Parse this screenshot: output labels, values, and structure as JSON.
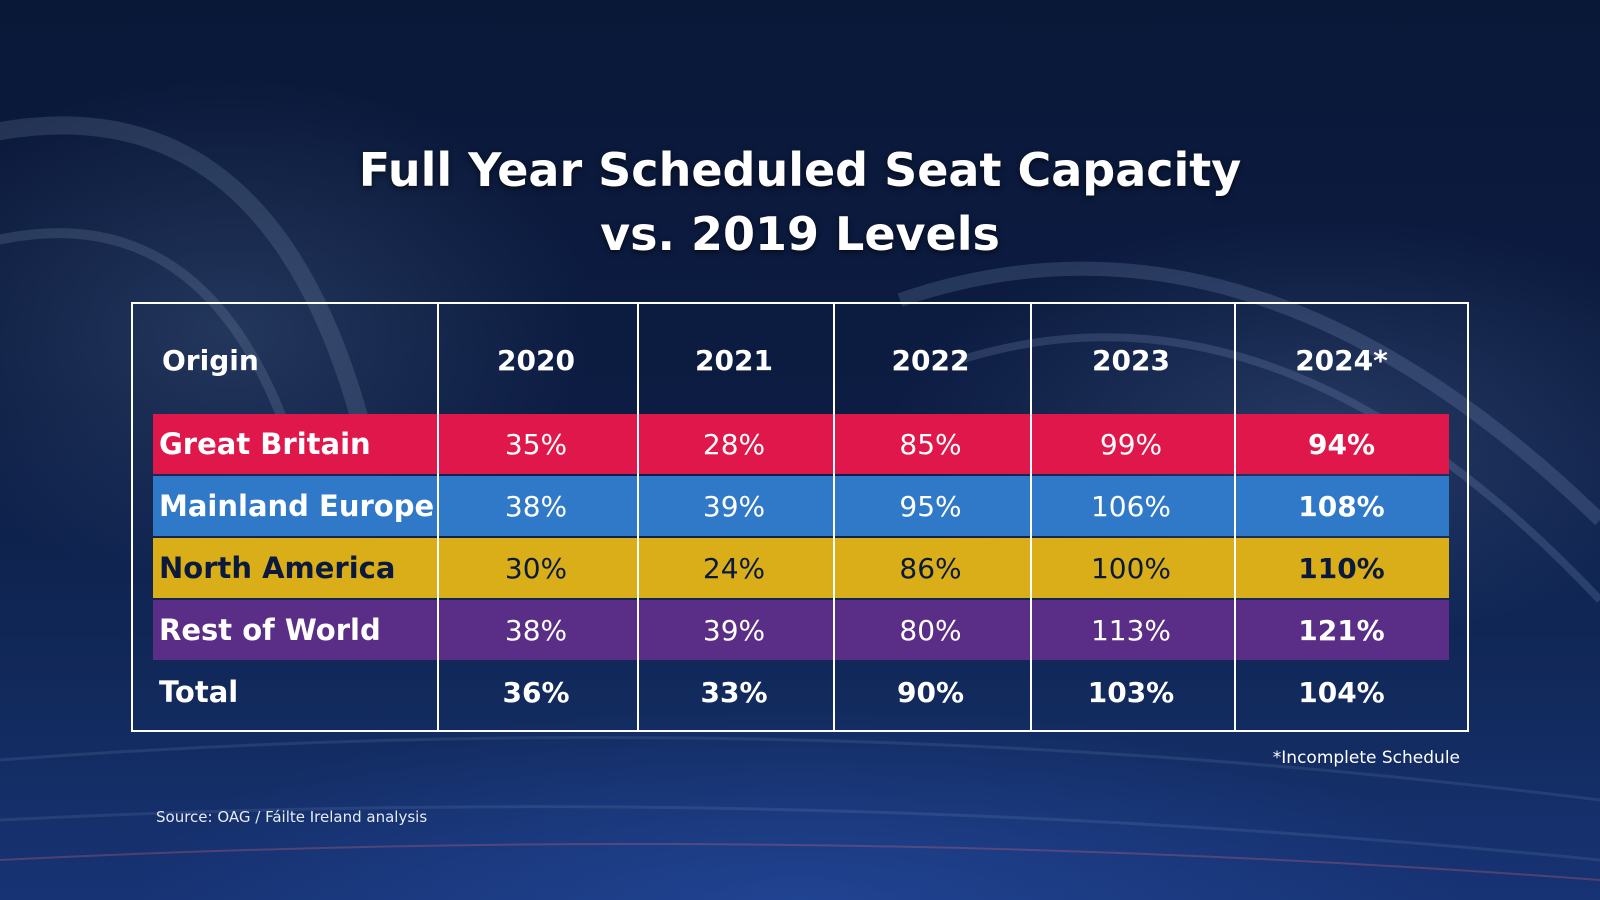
{
  "slide": {
    "title_line1": "Full Year Scheduled Seat Capacity",
    "title_line2": "vs. 2019 Levels",
    "footnote": "*Incomplete Schedule",
    "source": "Source: OAG / Fáilte Ireland analysis"
  },
  "colors": {
    "great_britain": "#e0174a",
    "mainland_europe": "#3079c9",
    "north_america": "#d9ae18",
    "rest_of_world": "#5a2e86",
    "text_light": "#ffffff",
    "text_dark": "#0b1a3c"
  },
  "chart_data": {
    "type": "table",
    "title": "Full Year Scheduled Seat Capacity vs. 2019 Levels",
    "columns": [
      "Origin",
      "2020",
      "2021",
      "2022",
      "2023",
      "2024*"
    ],
    "rows": [
      {
        "label": "Great Britain",
        "values": [
          "35%",
          "28%",
          "85%",
          "99%",
          "94%"
        ],
        "color": "#e0174a",
        "text": "light"
      },
      {
        "label": "Mainland Europe",
        "values": [
          "38%",
          "39%",
          "95%",
          "106%",
          "108%"
        ],
        "color": "#3079c9",
        "text": "light"
      },
      {
        "label": "North America",
        "values": [
          "30%",
          "24%",
          "86%",
          "100%",
          "110%"
        ],
        "color": "#d9ae18",
        "text": "dark"
      },
      {
        "label": "Rest of World",
        "values": [
          "38%",
          "39%",
          "80%",
          "113%",
          "121%"
        ],
        "color": "#5a2e86",
        "text": "light"
      },
      {
        "label": "Total",
        "values": [
          "36%",
          "33%",
          "90%",
          "103%",
          "104%"
        ],
        "color": "",
        "text": "light"
      }
    ]
  }
}
